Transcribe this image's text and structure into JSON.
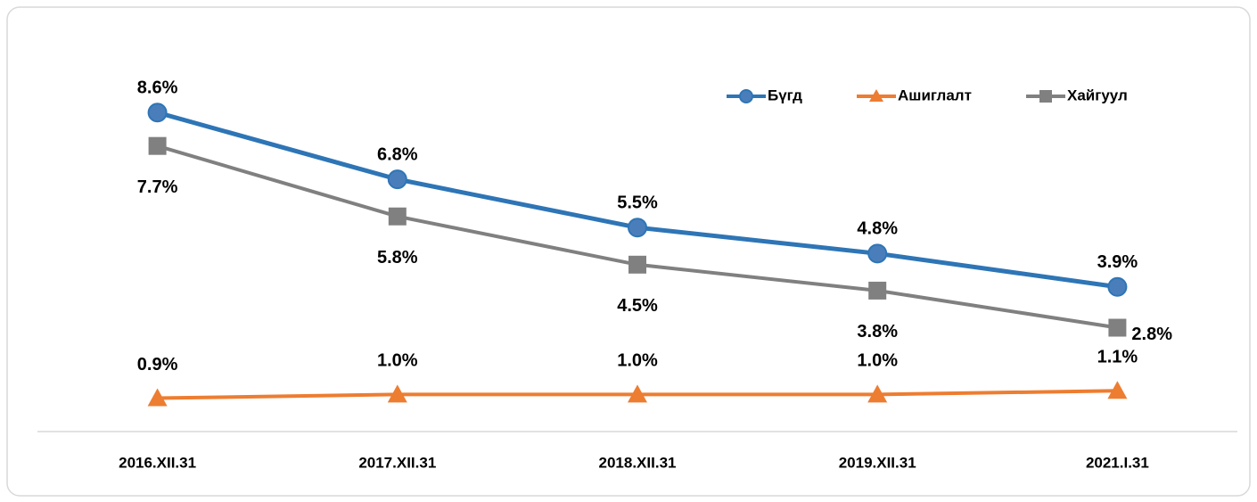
{
  "chart_data": {
    "type": "line",
    "categories": [
      "2016.XII.31",
      "2017.XII.31",
      "2018.XII.31",
      "2019.XII.31",
      "2021.I.31"
    ],
    "series": [
      {
        "name": "Бүгд",
        "color": "#2e75b6",
        "marker": "circle",
        "values": [
          8.6,
          6.8,
          5.5,
          4.8,
          3.9
        ],
        "value_labels": [
          "8.6%",
          "6.8%",
          "5.5%",
          "4.8%",
          "3.9%"
        ]
      },
      {
        "name": "Ашиглалт",
        "color": "#ed7d31",
        "marker": "triangle",
        "values": [
          0.9,
          1.0,
          1.0,
          1.0,
          1.1
        ],
        "value_labels": [
          "0.9%",
          "1.0%",
          "1.0%",
          "1.0%",
          "1.1%"
        ]
      },
      {
        "name": "Хайгуул",
        "color": "#808080",
        "marker": "square",
        "values": [
          7.7,
          5.8,
          4.5,
          3.8,
          2.8
        ],
        "value_labels": [
          "7.7%",
          "5.8%",
          "4.5%",
          "3.8%",
          "2.8%"
        ]
      }
    ],
    "ylim": [
      0,
      10
    ],
    "legend": "top-right"
  }
}
